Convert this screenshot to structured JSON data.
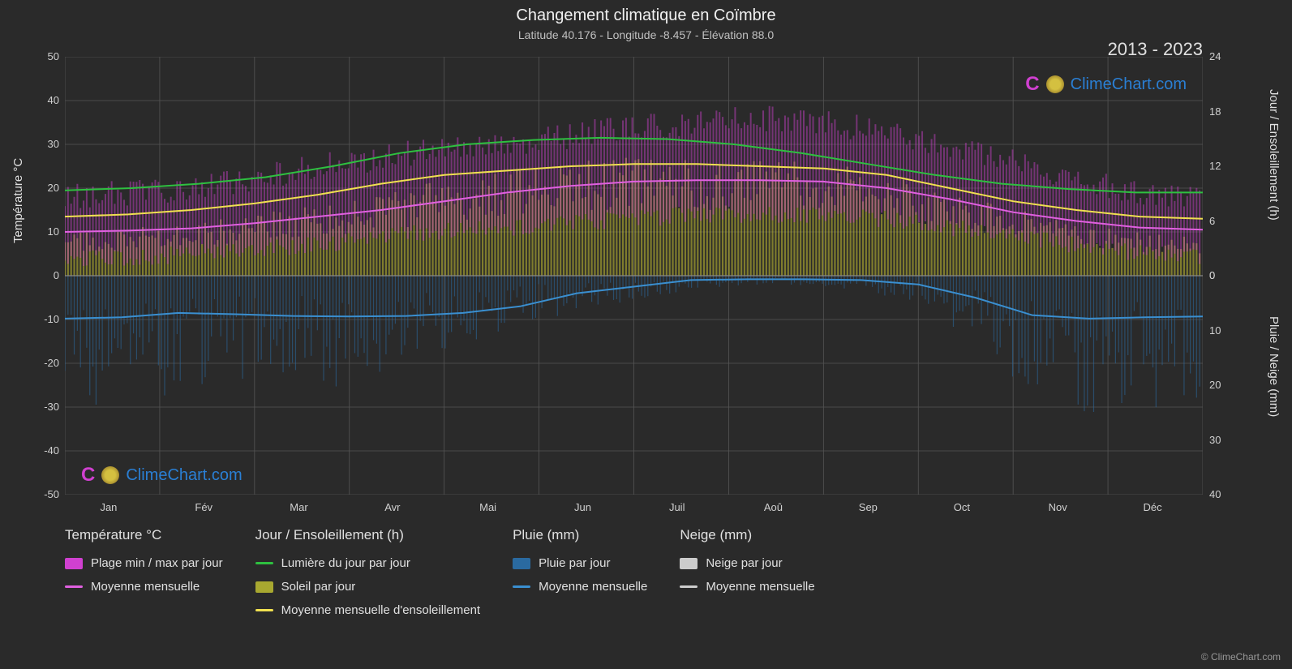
{
  "title": "Changement climatique en Coïmbre",
  "subtitle": "Latitude 40.176 - Longitude -8.457 - Élévation 88.0",
  "year_range": "2013 - 2023",
  "watermark_text": "ClimeChart.com",
  "copyright": "© ClimeChart.com",
  "chart": {
    "background_color": "#2a2a2a",
    "plot_bg_color": "#2a2a2a",
    "grid_color": "#555555",
    "grid_width": 0.8,
    "axis_text_color": "#d0d0d0",
    "months": [
      "Jan",
      "Fév",
      "Mar",
      "Avr",
      "Mai",
      "Jun",
      "Juil",
      "Aoû",
      "Sep",
      "Oct",
      "Nov",
      "Déc"
    ],
    "left_axis": {
      "label": "Température °C",
      "min": -50,
      "max": 50,
      "ticks": [
        -50,
        -40,
        -30,
        -20,
        -10,
        0,
        10,
        20,
        30,
        40,
        50
      ]
    },
    "right_axis_top": {
      "label": "Jour / Ensoleillement (h)",
      "min": 0,
      "max": 24,
      "ticks": [
        0,
        6,
        12,
        18,
        24
      ],
      "map_to_temp": {
        "0": 0,
        "24": 50
      }
    },
    "right_axis_bot": {
      "label": "Pluie / Neige (mm)",
      "min": 0,
      "max": 40,
      "ticks": [
        0,
        10,
        20,
        30,
        40
      ],
      "map_to_temp": {
        "0": 0,
        "40": -50
      }
    },
    "series": {
      "daylight_line": {
        "label": "Lumière du jour par jour",
        "color": "#2ec040",
        "width": 2,
        "values_temp_scale": [
          19.5,
          20,
          21,
          22.5,
          25,
          28,
          30,
          31.0,
          31.5,
          31.2,
          30,
          28,
          25.5,
          23,
          21,
          19.8,
          19,
          19
        ]
      },
      "sunshine_mean_line": {
        "label": "Moyenne mensuelle d'ensoleillement",
        "color": "#f0e050",
        "width": 2,
        "values_temp_scale": [
          13.5,
          14,
          15,
          16.5,
          18.5,
          21,
          23,
          24,
          25,
          25.5,
          25.5,
          25,
          24.5,
          23,
          20,
          17,
          15,
          13.5,
          13
        ]
      },
      "temp_mean_line": {
        "label": "Moyenne mensuelle",
        "color": "#e060e0",
        "width": 2,
        "values_temp_scale": [
          10,
          10.3,
          10.8,
          12,
          13.5,
          15,
          17,
          19,
          20.5,
          21.5,
          21.8,
          21.8,
          21.5,
          20,
          17.5,
          14.5,
          12.5,
          11,
          10.5
        ]
      },
      "rain_mean_line": {
        "label": "Moyenne mensuelle",
        "color": "#3a8fd0",
        "width": 2,
        "values_temp_scale": [
          -9.8,
          -9.5,
          -8.5,
          -8.8,
          -9.2,
          -9.3,
          -9.2,
          -8.5,
          -7,
          -4,
          -2.5,
          -1,
          -0.8,
          -0.8,
          -1,
          -2,
          -5,
          -9,
          -9.8,
          -9.5,
          -9.3
        ]
      },
      "temp_band": {
        "color": "#d040d0",
        "opacity": 0.45,
        "upper": [
          18,
          19,
          20,
          22,
          25,
          27,
          29,
          30,
          32,
          34,
          35,
          36,
          35,
          33,
          30,
          26,
          22,
          19,
          18
        ],
        "lower": [
          4,
          4,
          5,
          6,
          7,
          9,
          10,
          11,
          12,
          13,
          14,
          14,
          14,
          13,
          11,
          9,
          7,
          5,
          4
        ]
      },
      "sun_band": {
        "color": "#c4c030",
        "opacity": 0.55,
        "upper": [
          9,
          10,
          11,
          13,
          15,
          17,
          20,
          22,
          24,
          25,
          25,
          25,
          24,
          22,
          18,
          14,
          11,
          9,
          8
        ],
        "lower": [
          0,
          0,
          0,
          0,
          0,
          0,
          0,
          0,
          0,
          0,
          0,
          0,
          0,
          0,
          0,
          0,
          0,
          0,
          0
        ]
      },
      "rain_bars": {
        "color": "#2a6aa0",
        "opacity": 0.55,
        "daily_max_scale": [
          -28,
          -30,
          -25,
          -22,
          -20,
          -24,
          -18,
          -15,
          -10,
          -8,
          -5,
          -3,
          -2,
          -2,
          -3,
          -6,
          -14,
          -25,
          -30,
          -28,
          -26
        ]
      }
    }
  },
  "legend": {
    "groups": [
      {
        "header": "Température °C",
        "items": [
          {
            "type": "swatch",
            "color": "#d040d0",
            "label": "Plage min / max par jour"
          },
          {
            "type": "line",
            "color": "#e060e0",
            "label": "Moyenne mensuelle"
          }
        ]
      },
      {
        "header": "Jour / Ensoleillement (h)",
        "items": [
          {
            "type": "line",
            "color": "#2ec040",
            "label": "Lumière du jour par jour"
          },
          {
            "type": "swatch",
            "color": "#a8a830",
            "label": "Soleil par jour"
          },
          {
            "type": "line",
            "color": "#f0e050",
            "label": "Moyenne mensuelle d'ensoleillement"
          }
        ]
      },
      {
        "header": "Pluie (mm)",
        "items": [
          {
            "type": "swatch",
            "color": "#2a6aa0",
            "label": "Pluie par jour"
          },
          {
            "type": "line",
            "color": "#3a8fd0",
            "label": "Moyenne mensuelle"
          }
        ]
      },
      {
        "header": "Neige (mm)",
        "items": [
          {
            "type": "swatch",
            "color": "#cccccc",
            "label": "Neige par jour"
          },
          {
            "type": "line",
            "color": "#cccccc",
            "label": "Moyenne mensuelle"
          }
        ]
      }
    ]
  }
}
